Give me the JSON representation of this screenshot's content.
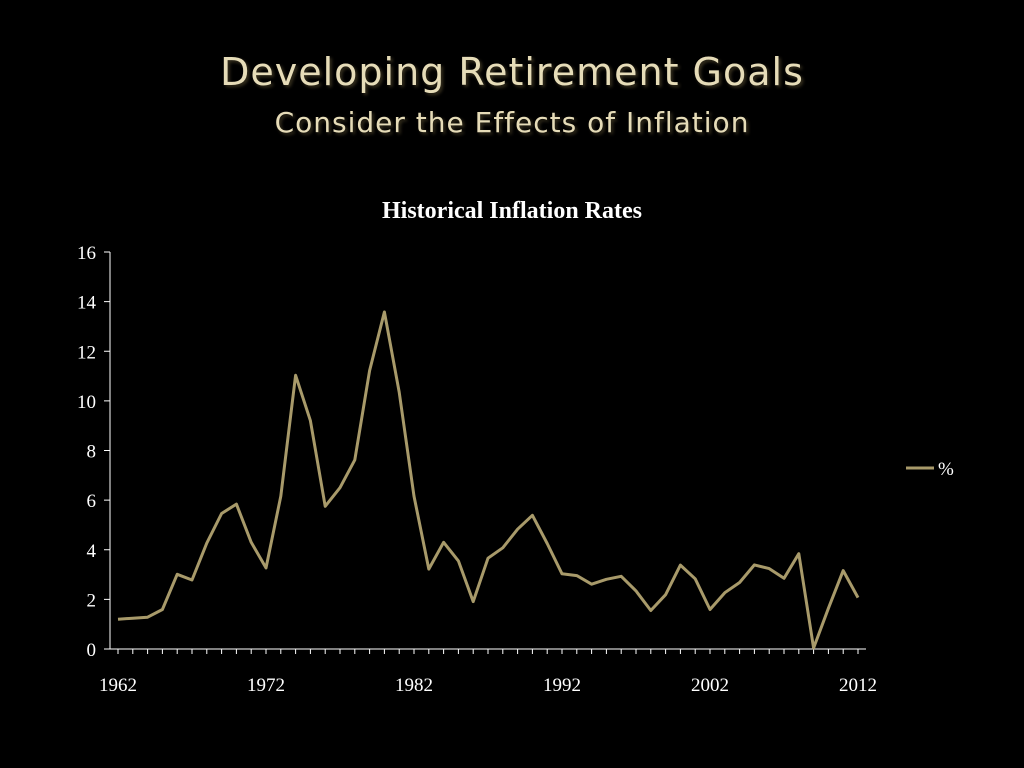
{
  "slide": {
    "title": "Developing Retirement Goals",
    "subtitle": "Consider the Effects of Inflation"
  },
  "chart_data": {
    "type": "line",
    "title": "Historical Inflation Rates",
    "xlabel": "",
    "ylabel": "",
    "xlim": [
      1962,
      2012
    ],
    "ylim": [
      0,
      16
    ],
    "y_ticks": [
      0,
      2,
      4,
      6,
      8,
      10,
      12,
      14,
      16
    ],
    "x_tick_labels": [
      "1962",
      "1972",
      "1982",
      "1992",
      "2002",
      "2012"
    ],
    "grid": false,
    "legend_position": "right",
    "line_color": "#a89a6a",
    "x": [
      1962,
      1963,
      1964,
      1965,
      1966,
      1967,
      1968,
      1969,
      1970,
      1971,
      1972,
      1973,
      1974,
      1975,
      1976,
      1977,
      1978,
      1979,
      1980,
      1981,
      1982,
      1983,
      1984,
      1985,
      1986,
      1987,
      1988,
      1989,
      1990,
      1991,
      1992,
      1993,
      1994,
      1995,
      1996,
      1997,
      1998,
      1999,
      2000,
      2001,
      2002,
      2003,
      2004,
      2005,
      2006,
      2007,
      2008,
      2009,
      2010,
      2011,
      2012
    ],
    "series": [
      {
        "name": "%",
        "values": [
          1.2,
          1.24,
          1.28,
          1.59,
          3.01,
          2.78,
          4.27,
          5.46,
          5.84,
          4.3,
          3.27,
          6.16,
          11.03,
          9.2,
          5.75,
          6.5,
          7.62,
          11.22,
          13.58,
          10.35,
          6.16,
          3.22,
          4.3,
          3.55,
          1.91,
          3.66,
          4.08,
          4.83,
          5.39,
          4.25,
          3.03,
          2.96,
          2.61,
          2.81,
          2.93,
          2.34,
          1.55,
          2.19,
          3.38,
          2.83,
          1.59,
          2.27,
          2.68,
          3.39,
          3.24,
          2.85,
          3.84,
          0.04,
          1.64,
          3.16,
          2.07
        ]
      }
    ]
  }
}
